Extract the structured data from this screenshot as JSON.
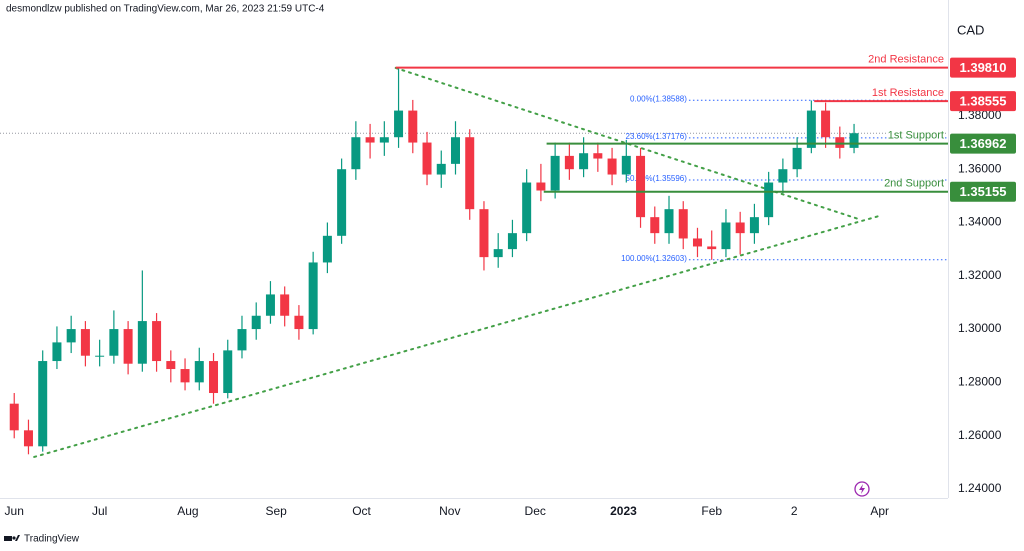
{
  "chart_data": {
    "type": "candlestick",
    "header": "desmondlzw published on TradingView.com, Mar 26, 2023 21:59 UTC-4",
    "currency": "CAD",
    "brand": "TradingView",
    "up_color": "#089981",
    "down_color": "#f23645",
    "x": [
      0,
      5,
      10,
      15,
      20,
      25,
      30,
      35,
      40,
      45,
      50,
      55,
      60,
      65,
      70,
      75,
      80,
      85,
      90,
      95,
      100,
      105,
      110,
      115,
      120,
      125,
      130,
      135,
      140,
      145,
      150,
      155,
      160,
      165,
      170,
      175,
      180,
      185,
      190,
      195,
      200,
      205,
      210,
      215,
      220,
      225,
      230,
      235,
      240,
      245,
      250,
      255,
      260,
      265,
      270,
      275,
      280,
      285,
      290,
      295
    ],
    "open": [
      1.272,
      1.262,
      1.256,
      1.288,
      1.295,
      1.3,
      1.29,
      1.29,
      1.3,
      1.287,
      1.303,
      1.288,
      1.285,
      1.28,
      1.288,
      1.276,
      1.292,
      1.3,
      1.305,
      1.313,
      1.305,
      1.3,
      1.325,
      1.335,
      1.36,
      1.372,
      1.37,
      1.372,
      1.382,
      1.37,
      1.358,
      1.362,
      1.372,
      1.345,
      1.327,
      1.33,
      1.336,
      1.355,
      1.352,
      1.365,
      1.36,
      1.366,
      1.364,
      1.358,
      1.365,
      1.342,
      1.336,
      1.345,
      1.334,
      1.331,
      1.33,
      1.34,
      1.336,
      1.342,
      1.355,
      1.36,
      1.368,
      1.382,
      1.372,
      1.368
    ],
    "high": [
      1.276,
      1.266,
      1.292,
      1.301,
      1.305,
      1.303,
      1.296,
      1.307,
      1.303,
      1.322,
      1.306,
      1.292,
      1.289,
      1.293,
      1.291,
      1.296,
      1.305,
      1.31,
      1.318,
      1.316,
      1.309,
      1.329,
      1.34,
      1.364,
      1.378,
      1.377,
      1.378,
      1.398,
      1.386,
      1.374,
      1.367,
      1.378,
      1.375,
      1.348,
      1.336,
      1.341,
      1.36,
      1.362,
      1.37,
      1.37,
      1.372,
      1.37,
      1.368,
      1.371,
      1.368,
      1.346,
      1.35,
      1.348,
      1.338,
      1.337,
      1.345,
      1.344,
      1.347,
      1.359,
      1.364,
      1.372,
      1.3858,
      1.385,
      1.376,
      1.377
    ],
    "low": [
      1.259,
      1.253,
      1.254,
      1.285,
      1.291,
      1.286,
      1.286,
      1.287,
      1.283,
      1.284,
      1.284,
      1.28,
      1.277,
      1.277,
      1.272,
      1.274,
      1.289,
      1.296,
      1.302,
      1.301,
      1.296,
      1.298,
      1.321,
      1.332,
      1.356,
      1.364,
      1.365,
      1.368,
      1.366,
      1.354,
      1.353,
      1.358,
      1.341,
      1.322,
      1.323,
      1.327,
      1.333,
      1.348,
      1.349,
      1.356,
      1.357,
      1.359,
      1.354,
      1.355,
      1.338,
      1.332,
      1.332,
      1.33,
      1.327,
      1.326,
      1.327,
      1.328,
      1.332,
      1.339,
      1.351,
      1.357,
      1.366,
      1.368,
      1.364,
      1.366
    ],
    "close": [
      1.262,
      1.256,
      1.288,
      1.295,
      1.3,
      1.29,
      1.29,
      1.3,
      1.287,
      1.303,
      1.288,
      1.285,
      1.28,
      1.288,
      1.276,
      1.292,
      1.3,
      1.305,
      1.313,
      1.305,
      1.3,
      1.325,
      1.335,
      1.36,
      1.372,
      1.37,
      1.372,
      1.382,
      1.37,
      1.358,
      1.362,
      1.372,
      1.345,
      1.327,
      1.33,
      1.336,
      1.355,
      1.352,
      1.365,
      1.36,
      1.366,
      1.364,
      1.358,
      1.365,
      1.342,
      1.336,
      1.345,
      1.334,
      1.331,
      1.33,
      1.34,
      1.336,
      1.342,
      1.355,
      1.36,
      1.368,
      1.382,
      1.372,
      1.368,
      1.3735
    ],
    "xlim": [
      -5,
      328
    ],
    "ylim": [
      1.2366,
      1.4235
    ],
    "xticks": [
      {
        "value": 0,
        "label": "Jun"
      },
      {
        "value": 30,
        "label": "Jul"
      },
      {
        "value": 61,
        "label": "Aug"
      },
      {
        "value": 92,
        "label": "Sep"
      },
      {
        "value": 122,
        "label": "Oct"
      },
      {
        "value": 153,
        "label": "Nov"
      },
      {
        "value": 183,
        "label": "Dec"
      },
      {
        "value": 214,
        "label": "2023"
      },
      {
        "value": 245,
        "label": "Feb"
      },
      {
        "value": 274,
        "label": "2"
      },
      {
        "value": 304,
        "label": "Apr"
      }
    ],
    "yticks": [
      {
        "value": 1.24,
        "label": "1.24000"
      },
      {
        "value": 1.26,
        "label": "1.26000"
      },
      {
        "value": 1.28,
        "label": "1.28000"
      },
      {
        "value": 1.3,
        "label": "1.30000"
      },
      {
        "value": 1.32,
        "label": "1.32000"
      },
      {
        "value": 1.34,
        "label": "1.34000"
      },
      {
        "value": 1.36,
        "label": "1.36000"
      },
      {
        "value": 1.38,
        "label": "1.38000"
      }
    ],
    "levels": [
      {
        "name": "2nd Resistance",
        "value": 1.3981,
        "value_label": "1.39810",
        "color": "#f23645",
        "start": 134
      },
      {
        "name": "1st Resistance",
        "value": 1.38555,
        "value_label": "1.38555",
        "color": "#f23645",
        "start": 281
      },
      {
        "name": "1st Support",
        "value": 1.36962,
        "value_label": "1.36962",
        "color": "#388e3c",
        "start": 187
      },
      {
        "name": "2nd Support",
        "value": 1.35155,
        "value_label": "1.35155",
        "color": "#388e3c",
        "start": 186
      }
    ],
    "fib": [
      {
        "label": "0.00%(1.38588)",
        "value": 1.38588,
        "start": 237
      },
      {
        "label": "23.60%(1.37176)",
        "value": 1.37176,
        "start": 237
      },
      {
        "label": "50.00%(1.35596)",
        "value": 1.35596,
        "start": 237
      },
      {
        "label": "100.00%(1.32603)",
        "value": 1.32603,
        "start": 237
      }
    ],
    "fib_color": "#2962ff",
    "trendline_color": "#43a047",
    "trendlines": [
      {
        "x": [
          134,
          296
        ],
        "y": [
          1.398,
          1.3415
        ]
      },
      {
        "x": [
          7,
          304
        ],
        "y": [
          1.252,
          1.3425
        ]
      }
    ]
  }
}
